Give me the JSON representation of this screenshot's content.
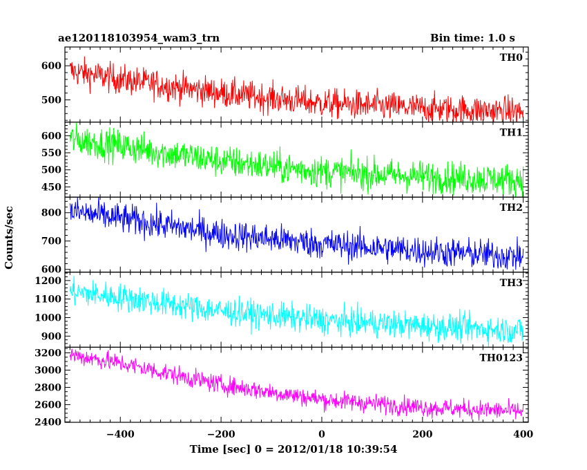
{
  "chart_data": {
    "type": "line",
    "title": "ae120118103954_wam3_trn",
    "bin_time": "Bin time: 1.0 s",
    "xlabel": "Time [sec] 0 = 2012/01/18 10:39:54",
    "ylabel": "Counts/sec",
    "xlim": [
      -510,
      410
    ],
    "x_ticks": [
      -400,
      -200,
      0,
      200,
      400
    ],
    "x_range": [
      -500,
      400
    ],
    "grid": false,
    "panels": [
      {
        "name": "TH0",
        "color": "#ff0000",
        "ylim": [
          435,
          655
        ],
        "y_ticks": [
          500,
          600
        ],
        "y_minor_step": 20,
        "trend": [
          {
            "x": -500,
            "y": 585
          },
          {
            "x": -400,
            "y": 560
          },
          {
            "x": -200,
            "y": 520
          },
          {
            "x": 0,
            "y": 490
          },
          {
            "x": 200,
            "y": 475
          },
          {
            "x": 400,
            "y": 465
          }
        ],
        "noise": 22
      },
      {
        "name": "TH1",
        "color": "#00ff00",
        "ylim": [
          420,
          640
        ],
        "y_ticks": [
          450,
          500,
          550,
          600
        ],
        "y_minor_step": 10,
        "trend": [
          {
            "x": -500,
            "y": 590
          },
          {
            "x": -400,
            "y": 570
          },
          {
            "x": -200,
            "y": 525
          },
          {
            "x": 0,
            "y": 495
          },
          {
            "x": 200,
            "y": 480
          },
          {
            "x": 400,
            "y": 470
          }
        ],
        "noise": 24
      },
      {
        "name": "TH2",
        "color": "#0000ff",
        "ylim": [
          590,
          855
        ],
        "y_ticks": [
          600,
          700,
          800
        ],
        "y_minor_step": 20,
        "trend": [
          {
            "x": -500,
            "y": 805
          },
          {
            "x": -400,
            "y": 780
          },
          {
            "x": -200,
            "y": 725
          },
          {
            "x": 0,
            "y": 690
          },
          {
            "x": 200,
            "y": 665
          },
          {
            "x": 400,
            "y": 645
          }
        ],
        "noise": 27
      },
      {
        "name": "TH3",
        "color": "#00ffff",
        "ylim": [
          840,
          1245
        ],
        "y_ticks": [
          900,
          1000,
          1100,
          1200
        ],
        "y_minor_step": 20,
        "trend": [
          {
            "x": -500,
            "y": 1140
          },
          {
            "x": -400,
            "y": 1110
          },
          {
            "x": -200,
            "y": 1035
          },
          {
            "x": 0,
            "y": 985
          },
          {
            "x": 200,
            "y": 955
          },
          {
            "x": 400,
            "y": 930
          }
        ],
        "noise": 38
      },
      {
        "name": "TH0123",
        "color": "#ff00ff",
        "ylim": [
          2395,
          3265
        ],
        "y_ticks": [
          2400,
          2600,
          2800,
          3000,
          3200
        ],
        "y_minor_step": 50,
        "trend": [
          {
            "x": -500,
            "y": 3180
          },
          {
            "x": -400,
            "y": 3080
          },
          {
            "x": -200,
            "y": 2830
          },
          {
            "x": 0,
            "y": 2660
          },
          {
            "x": 200,
            "y": 2570
          },
          {
            "x": 400,
            "y": 2520
          }
        ],
        "noise": 55
      }
    ]
  }
}
